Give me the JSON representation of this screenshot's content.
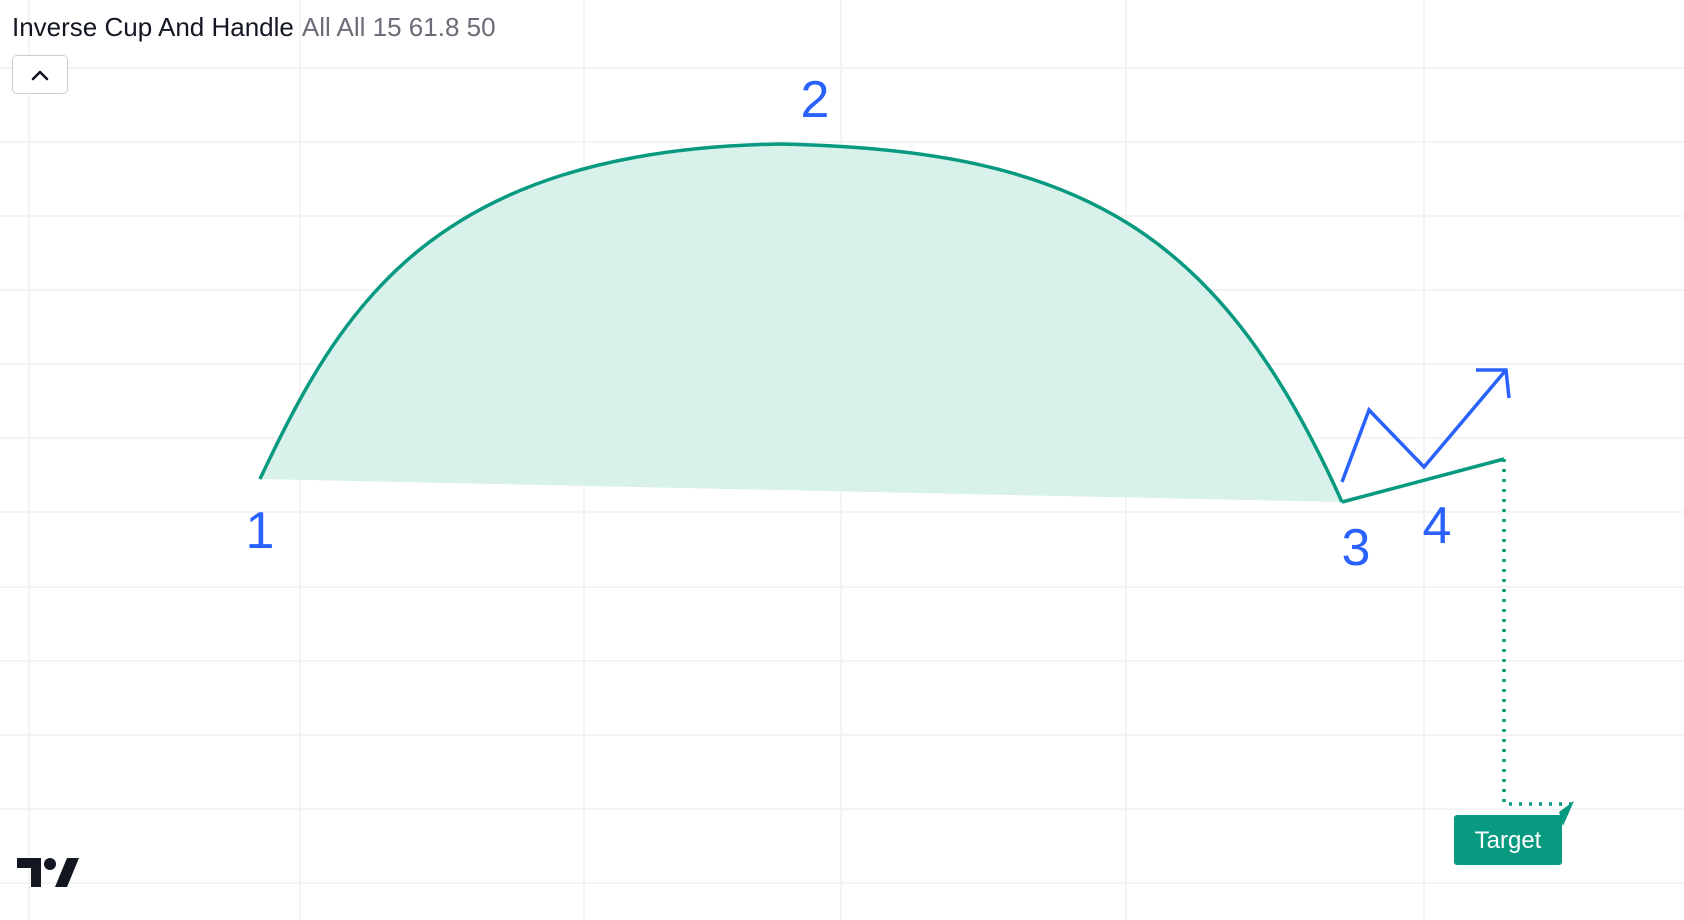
{
  "legend": {
    "title": "Inverse Cup And Handle",
    "params": "All All 15 61.8 50"
  },
  "controls": {
    "collapse_icon": "chevron-up-icon"
  },
  "logo": {
    "icon": "tradingview-logo-icon"
  },
  "colors": {
    "pattern_line": "#089981",
    "pattern_fill": "#d8f1ea",
    "arrow": "#2962ff",
    "labels": "#2962ff",
    "grid": "#f0f1f3",
    "target_bg": "#089981",
    "target_text": "#ffffff"
  },
  "chart_data": {
    "type": "drawing",
    "title": "Inverse Cup And Handle",
    "grid": true,
    "points": [
      {
        "label": "1"
      },
      {
        "label": "2"
      },
      {
        "label": "3"
      },
      {
        "label": "4"
      }
    ],
    "target_label": "Target"
  }
}
